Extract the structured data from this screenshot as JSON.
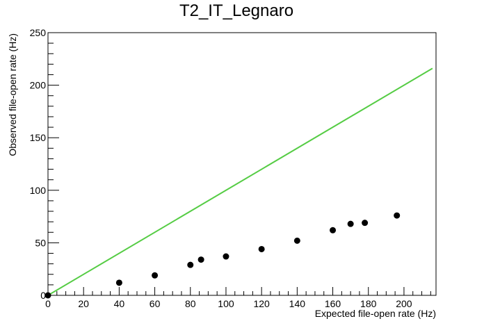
{
  "chart_data": {
    "type": "scatter",
    "title": "T2_IT_Legnaro",
    "xlabel": "Expected file-open rate (Hz)",
    "ylabel": "Observed file-open rate (Hz)",
    "xlim": [
      0,
      218
    ],
    "ylim": [
      0,
      250
    ],
    "x_ticks": [
      0,
      20,
      40,
      60,
      80,
      100,
      120,
      140,
      160,
      180,
      200
    ],
    "y_ticks": [
      0,
      50,
      100,
      150,
      200,
      250
    ],
    "grid": false,
    "series": [
      {
        "type": "scatter",
        "color": "#000000",
        "points": [
          {
            "x": 0,
            "y": 0
          },
          {
            "x": 40,
            "y": 12
          },
          {
            "x": 60,
            "y": 19
          },
          {
            "x": 80,
            "y": 29
          },
          {
            "x": 86,
            "y": 34
          },
          {
            "x": 100,
            "y": 37
          },
          {
            "x": 120,
            "y": 44
          },
          {
            "x": 140,
            "y": 52
          },
          {
            "x": 160,
            "y": 62
          },
          {
            "x": 170,
            "y": 68
          },
          {
            "x": 178,
            "y": 69
          },
          {
            "x": 196,
            "y": 76
          }
        ]
      },
      {
        "type": "line",
        "color": "#55cc44",
        "points": [
          {
            "x": 0,
            "y": 0
          },
          {
            "x": 216,
            "y": 216
          }
        ]
      }
    ]
  }
}
